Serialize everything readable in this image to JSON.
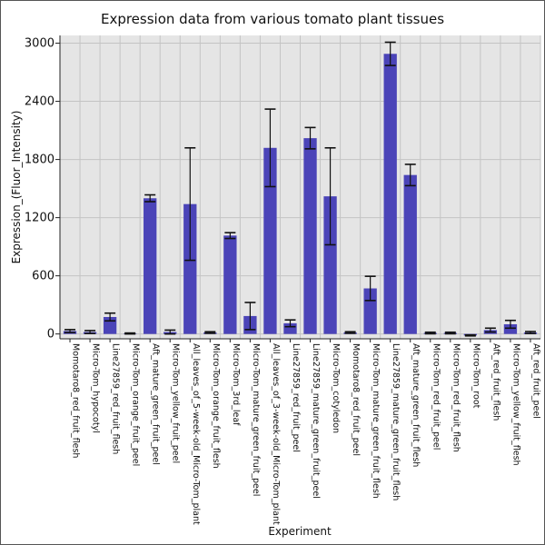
{
  "chart_data": {
    "type": "bar",
    "title": "Expression data from various tomato plant tissues",
    "xlabel": "Experiment",
    "ylabel": "Expression_(Fluor_Intensity)",
    "ylim": [
      -50,
      3080
    ],
    "yticks": [
      0,
      600,
      1200,
      1800,
      2400,
      3000
    ],
    "grid": true,
    "colors": {
      "bar": "#4b44b8",
      "background": "#e5e5e5",
      "grid": "#c4c4c4"
    },
    "categories": [
      "Momotaro8_red_fruit_flesh",
      "Micro-Tom_hypocotyl",
      "Line27859_red_fruit_flesh",
      "Micro-Tom_orange_fruit_peel",
      "Aft_mature_green_fruit_peel",
      "Micro-Tom_yellow_fruit_peel",
      "All_leaves_of_5-week-old_Micro-Tom_plant",
      "Micro-Tom_orange_fruit_flesh",
      "Micro-Tom_3rd_leaf",
      "Micro-Tom_mature_green_fruit_peel",
      "All_leaves_of_3-week-old_Micro-Tom_plant",
      "Line27859_red_fruit_peel",
      "Line27859_mature_green_fruit_peel",
      "Micro-Tom_cotyledon",
      "Momotaro8_red_fruit_peel",
      "Micro-Tom_mature_green_fruit_flesh",
      "Line27859_mature_green_fruit_flesh",
      "Aft_mature_green_fruit_flesh",
      "Micro-Tom_red_fruit_peel",
      "Micro-Tom_red_fruit_flesh",
      "Micro-Tom_root",
      "Aft_red_fruit_flesh",
      "Micro-Tom_yellow_fruit_flesh",
      "Aft_red_fruit_peel"
    ],
    "values": [
      30,
      20,
      175,
      5,
      1400,
      20,
      1340,
      15,
      1015,
      185,
      1920,
      110,
      2020,
      1420,
      15,
      470,
      2890,
      1640,
      10,
      10,
      -15,
      40,
      100,
      15
    ],
    "errors": [
      15,
      15,
      40,
      5,
      35,
      20,
      580,
      8,
      30,
      140,
      400,
      35,
      110,
      500,
      8,
      125,
      120,
      110,
      8,
      8,
      5,
      20,
      40,
      10
    ]
  }
}
